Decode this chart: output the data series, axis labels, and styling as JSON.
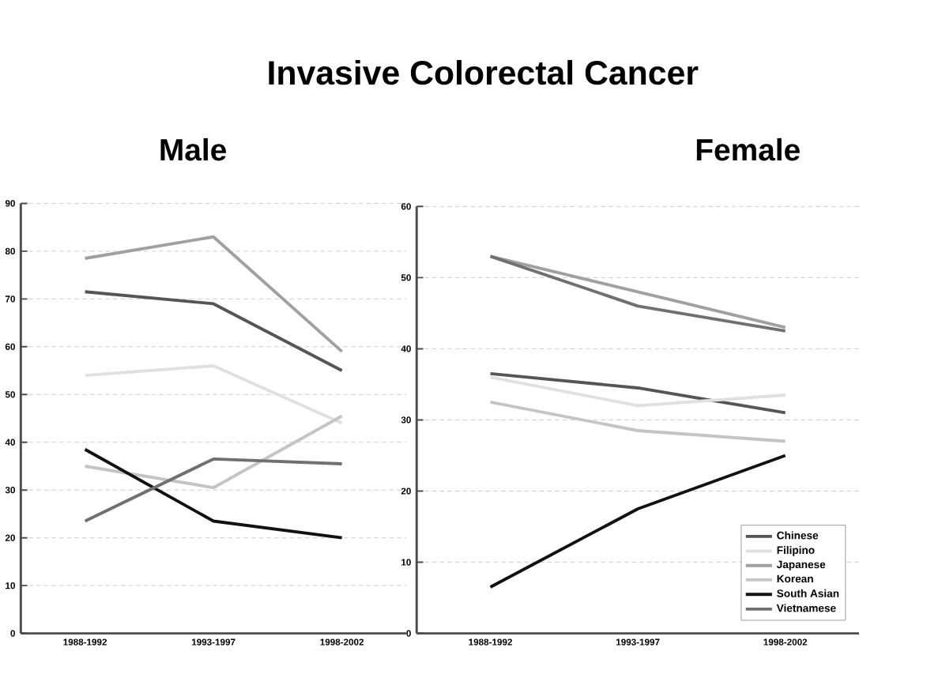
{
  "chart_data": [
    {
      "type": "line",
      "title": "Invasive Colorectal Cancer",
      "subtitle": "Male",
      "categories": [
        "1988-1992",
        "1993-1997",
        "1998-2002"
      ],
      "ylim": [
        0,
        90
      ],
      "yticks": [
        0,
        10,
        20,
        30,
        40,
        50,
        60,
        70,
        80,
        90
      ],
      "grid": "y",
      "marker": "none",
      "legend": false,
      "series": [
        {
          "color": "#555555",
          "values": [
            71.5,
            69,
            55
          ]
        },
        {
          "color": "#e0e0e0",
          "values": [
            54,
            56,
            44
          ]
        },
        {
          "color": "#a0a0a0",
          "values": [
            78.5,
            83,
            59
          ]
        },
        {
          "color": "#c4c4c4",
          "values": [
            35,
            30.5,
            45.5
          ]
        },
        {
          "color": "#111111",
          "values": [
            38.5,
            23.5,
            20
          ]
        },
        {
          "color": "#707070",
          "values": [
            23.5,
            36.5,
            35.5
          ]
        }
      ]
    },
    {
      "type": "line",
      "title": "Female",
      "categories": [
        "1988-1992",
        "1993-1997",
        "1998-2002"
      ],
      "ylim": [
        0,
        60
      ],
      "yticks": [
        0,
        10,
        20,
        30,
        40,
        50,
        60
      ],
      "grid": "y",
      "marker": "none",
      "legend": "bottom right",
      "series": [
        {
          "name": "Chinese",
          "color": "#555555",
          "values": [
            36.5,
            34.5,
            31
          ]
        },
        {
          "name": "Filipino",
          "color": "#e0e0e0",
          "values": [
            36,
            32,
            33.5
          ]
        },
        {
          "name": "Japanese",
          "color": "#a0a0a0",
          "values": [
            53,
            48,
            43
          ]
        },
        {
          "name": "Korean",
          "color": "#c4c4c4",
          "values": [
            32.5,
            28.5,
            27
          ]
        },
        {
          "name": "South Asian",
          "color": "#111111",
          "values": [
            6.5,
            17.5,
            25
          ]
        },
        {
          "name": "Vietnamese",
          "color": "#707070",
          "values": [
            53,
            46,
            42.5
          ]
        }
      ]
    }
  ]
}
